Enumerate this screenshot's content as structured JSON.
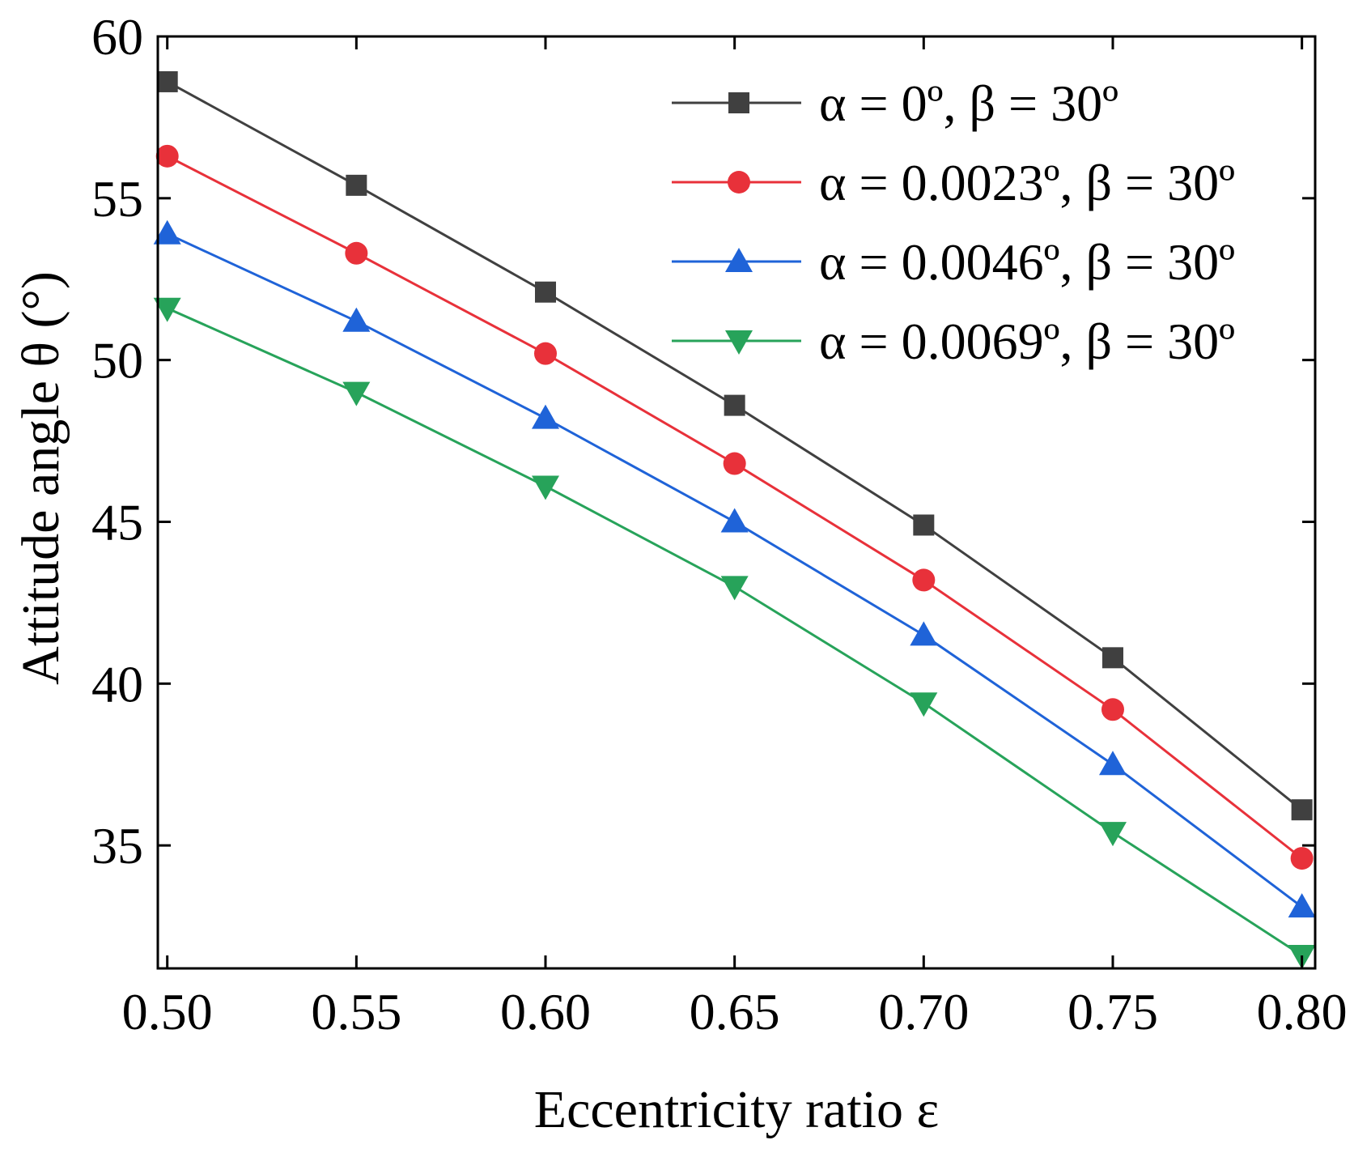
{
  "chart_data": {
    "type": "line",
    "title": "",
    "xlabel": "Eccentricity ratio ε",
    "ylabel": "Attitude angle θ (°)",
    "xlim": [
      0.4975,
      0.8035
    ],
    "ylim": [
      31.2,
      60
    ],
    "x": [
      0.5,
      0.55,
      0.6,
      0.65,
      0.7,
      0.75,
      0.8
    ],
    "x_tick_labels": [
      "0.50",
      "0.55",
      "0.60",
      "0.65",
      "0.70",
      "0.75",
      "0.80"
    ],
    "y_ticks": [
      35,
      40,
      45,
      50,
      55,
      60
    ],
    "y_tick_labels": [
      "35",
      "40",
      "45",
      "50",
      "55",
      "60"
    ],
    "grid": false,
    "legend_position": "top-right",
    "series": [
      {
        "name": "α = 0º, β = 30º",
        "color": "#404040",
        "marker": "square",
        "values": [
          58.6,
          55.4,
          52.1,
          48.6,
          44.9,
          40.8,
          36.1
        ]
      },
      {
        "name": "α = 0.0023º, β = 30º",
        "color": "#e8313a",
        "marker": "circle",
        "values": [
          56.3,
          53.3,
          50.2,
          46.8,
          43.2,
          39.2,
          34.6
        ]
      },
      {
        "name": "α = 0.0046º, β = 30º",
        "color": "#1f63d8",
        "marker": "triangle-up",
        "values": [
          53.9,
          51.2,
          48.2,
          45.0,
          41.5,
          37.5,
          33.1
        ]
      },
      {
        "name": "α = 0.0069º, β = 30º",
        "color": "#27a35a",
        "marker": "triangle-down",
        "values": [
          51.6,
          49.0,
          46.1,
          43.0,
          39.4,
          35.4,
          31.6
        ]
      }
    ]
  }
}
